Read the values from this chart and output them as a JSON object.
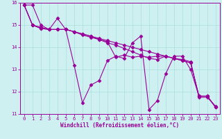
{
  "xlabel": "Windchill (Refroidissement éolien,°C)",
  "bg_color": "#cff0f0",
  "line_color": "#990099",
  "marker": "D",
  "xlim": [
    -0.5,
    23.5
  ],
  "ylim": [
    11,
    16
  ],
  "xticks": [
    0,
    1,
    2,
    3,
    4,
    5,
    6,
    7,
    8,
    9,
    10,
    11,
    12,
    13,
    14,
    15,
    16,
    17,
    18,
    19,
    20,
    21,
    22,
    23
  ],
  "yticks": [
    11,
    12,
    13,
    14,
    15,
    16
  ],
  "series": [
    [
      15.9,
      15.9,
      15.0,
      14.8,
      15.3,
      14.8,
      13.2,
      11.5,
      12.3,
      12.5,
      13.4,
      13.6,
      13.5,
      14.2,
      14.5,
      11.2,
      11.6,
      12.8,
      13.6,
      13.6,
      13.0,
      11.8,
      11.8,
      11.3
    ],
    [
      15.9,
      15.0,
      14.9,
      14.8,
      14.8,
      14.8,
      14.7,
      14.55,
      14.45,
      14.35,
      14.25,
      13.55,
      13.65,
      13.55,
      13.6,
      13.55,
      13.6,
      13.6,
      13.5,
      13.45,
      13.35,
      11.75,
      11.75,
      11.35
    ],
    [
      15.9,
      15.0,
      14.85,
      14.8,
      14.8,
      14.8,
      14.7,
      14.6,
      14.5,
      14.4,
      14.3,
      14.2,
      14.1,
      14.0,
      13.9,
      13.8,
      13.7,
      13.6,
      13.5,
      13.4,
      13.3,
      11.8,
      11.8,
      11.3
    ],
    [
      15.9,
      15.0,
      14.85,
      14.8,
      14.8,
      14.8,
      14.7,
      14.6,
      14.5,
      14.35,
      14.2,
      14.1,
      13.95,
      13.8,
      13.65,
      13.5,
      13.45,
      13.6,
      13.5,
      13.4,
      13.3,
      11.8,
      11.8,
      11.3
    ]
  ],
  "grid_color": "#aadddd",
  "marker_size": 2.5,
  "linewidth": 0.8,
  "xlabel_fontsize": 5.5,
  "tick_fontsize": 5.0
}
